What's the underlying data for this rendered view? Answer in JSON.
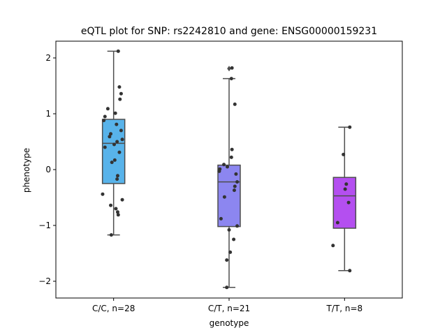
{
  "chart_data": {
    "type": "box",
    "title": "eQTL plot for SNP: rs2242810 and gene: ENSG00000159231",
    "xlabel": "genotype",
    "ylabel": "phenotype",
    "ylim": [
      -2.3,
      2.3
    ],
    "yticks": [
      -2,
      -1,
      0,
      1,
      2
    ],
    "yticklabels": [
      "−2",
      "−1",
      "0",
      "1",
      "2"
    ],
    "grid": false,
    "groups": [
      {
        "label": "C/C, n=28",
        "color": "#58b3ea",
        "box": {
          "q1": -0.25,
          "median": 0.47,
          "q3": 0.9,
          "whisker_low": -1.17,
          "whisker_high": 2.12
        },
        "outliers": [],
        "points": [
          [
            0.08,
            2.12
          ],
          [
            0.1,
            1.48
          ],
          [
            0.13,
            1.36
          ],
          [
            0.11,
            1.26
          ],
          [
            -0.1,
            1.09
          ],
          [
            -0.15,
            0.95
          ],
          [
            -0.17,
            0.88
          ],
          [
            0.03,
            1.01
          ],
          [
            0.05,
            0.81
          ],
          [
            0.13,
            0.7
          ],
          [
            -0.05,
            0.64
          ],
          [
            -0.07,
            0.59
          ],
          [
            0.15,
            0.54
          ],
          [
            0.06,
            0.5
          ],
          [
            0.01,
            0.45
          ],
          [
            -0.15,
            0.4
          ],
          [
            0.1,
            0.31
          ],
          [
            0.02,
            0.17
          ],
          [
            -0.03,
            0.13
          ],
          [
            0.07,
            -0.11
          ],
          [
            0.06,
            -0.17
          ],
          [
            -0.19,
            -0.44
          ],
          [
            0.15,
            -0.54
          ],
          [
            -0.05,
            -0.64
          ],
          [
            0.04,
            -0.7
          ],
          [
            0.07,
            -0.76
          ],
          [
            0.08,
            -0.81
          ],
          [
            -0.04,
            -1.17
          ]
        ]
      },
      {
        "label": "C/T, n=21",
        "color": "#8c86f0",
        "box": {
          "q1": -1.02,
          "median": -0.22,
          "q3": 0.08,
          "whisker_low": -2.11,
          "whisker_high": 1.63
        },
        "outliers": [
          1.81
        ],
        "points": [
          [
            0.05,
            1.82
          ],
          [
            0.04,
            1.63
          ],
          [
            0.1,
            1.17
          ],
          [
            0.05,
            0.36
          ],
          [
            0.04,
            0.22
          ],
          [
            -0.09,
            0.09
          ],
          [
            -0.03,
            0.05
          ],
          [
            -0.16,
            0.01
          ],
          [
            -0.17,
            -0.03
          ],
          [
            0.12,
            -0.08
          ],
          [
            0.14,
            -0.22
          ],
          [
            0.1,
            -0.3
          ],
          [
            0.09,
            -0.37
          ],
          [
            -0.08,
            -0.49
          ],
          [
            -0.14,
            -0.88
          ],
          [
            0.14,
            -1.01
          ],
          [
            0.0,
            -1.08
          ],
          [
            0.08,
            -1.25
          ],
          [
            0.02,
            -1.48
          ],
          [
            -0.04,
            -1.62
          ],
          [
            -0.04,
            -2.11
          ]
        ]
      },
      {
        "label": "T/T, n=8",
        "color": "#b44ff0",
        "box": {
          "q1": -1.05,
          "median": -0.47,
          "q3": -0.14,
          "whisker_low": -1.81,
          "whisker_high": 0.76
        },
        "outliers": [],
        "points": [
          [
            0.09,
            0.76
          ],
          [
            -0.02,
            0.27
          ],
          [
            0.03,
            -0.26
          ],
          [
            0.01,
            -0.35
          ],
          [
            0.07,
            -0.59
          ],
          [
            -0.12,
            -0.95
          ],
          [
            -0.2,
            -1.36
          ],
          [
            0.09,
            -1.81
          ]
        ]
      }
    ]
  }
}
